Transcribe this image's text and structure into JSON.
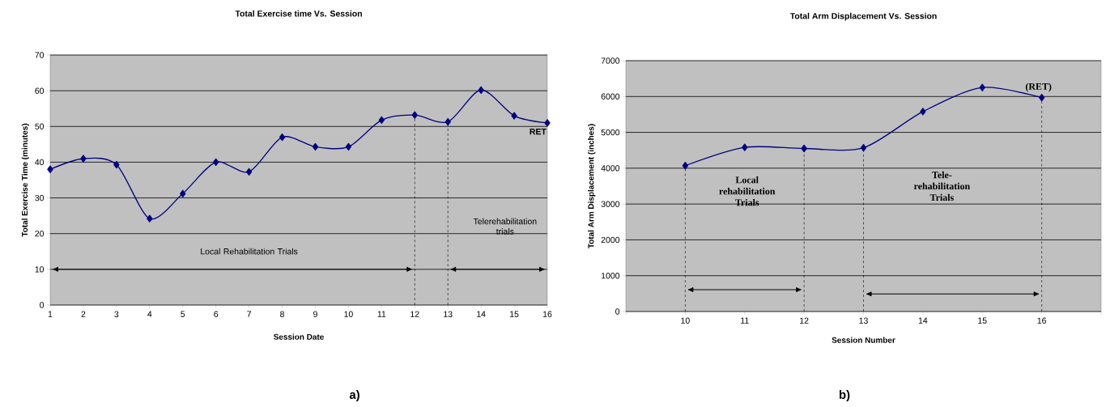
{
  "chart_data": [
    {
      "type": "line",
      "title": "Total Exercise time Vs. Session",
      "xlabel": "Session Date",
      "ylabel": "Total Exercise Time (minutes)",
      "x": [
        1,
        2,
        3,
        4,
        5,
        6,
        7,
        8,
        9,
        10,
        11,
        12,
        13,
        14,
        15,
        16
      ],
      "values": [
        38,
        41,
        39.3,
        24.2,
        31.2,
        40,
        37.3,
        47,
        44.3,
        44.3,
        51.8,
        53.2,
        51.3,
        60.2,
        53,
        51
      ],
      "color": "#000080",
      "marker": "diamond",
      "line_style": "solid",
      "grid": "y",
      "xlim": [
        1,
        16
      ],
      "ylim": [
        0,
        70
      ],
      "xticks": [
        1,
        2,
        3,
        4,
        5,
        6,
        7,
        8,
        9,
        10,
        11,
        12,
        13,
        14,
        15,
        16
      ],
      "yticks": [
        0,
        10,
        20,
        30,
        40,
        50,
        60,
        70
      ],
      "ref_lines": [
        {
          "axis": "x",
          "value": 12,
          "color": "#000000",
          "line_style": "dashed"
        },
        {
          "axis": "x",
          "value": 13,
          "color": "#000000",
          "line_style": "dashed"
        }
      ],
      "annotations": [
        "Local Rehabilitation Trials",
        "Telerehabilitation trials",
        {
          "text": "RET",
          "x": 16,
          "y": 51
        },
        "a)"
      ]
    },
    {
      "type": "line",
      "title": "Total Arm Displacement Vs. Session",
      "xlabel": "Session Number",
      "ylabel": "Total Arm Displacement (inches)",
      "x": [
        10,
        11,
        12,
        13,
        14,
        15,
        16
      ],
      "values": [
        4070,
        4580,
        4550,
        4570,
        5580,
        6250,
        5970
      ],
      "color": "#000080",
      "marker": "diamond",
      "line_style": "solid",
      "grid": "y",
      "xlim": [
        9,
        17
      ],
      "ylim": [
        0,
        7000
      ],
      "xticks": [
        {
          "value": 9,
          "label": null
        },
        10,
        11,
        12,
        13,
        14,
        15,
        16,
        {
          "value": 17,
          "label": null
        }
      ],
      "yticks": [
        0,
        1000,
        2000,
        3000,
        4000,
        5000,
        6000,
        7000
      ],
      "ref_lines": [
        {
          "axis": "x",
          "value": 10,
          "color": "#000000",
          "line_style": "dashed"
        },
        {
          "axis": "x",
          "value": 12,
          "color": "#000000",
          "line_style": "dashed"
        },
        {
          "axis": "x",
          "value": 13,
          "color": "#000000",
          "line_style": "dashed"
        },
        {
          "axis": "x",
          "value": 16,
          "color": "#000000",
          "line_style": "dashed"
        }
      ],
      "annotations": [
        "Local rehabilitation Trials",
        "Tele-rehabilitation Trials",
        {
          "text": "(RET)",
          "x": 16,
          "y": 5970
        },
        "b)"
      ]
    }
  ]
}
